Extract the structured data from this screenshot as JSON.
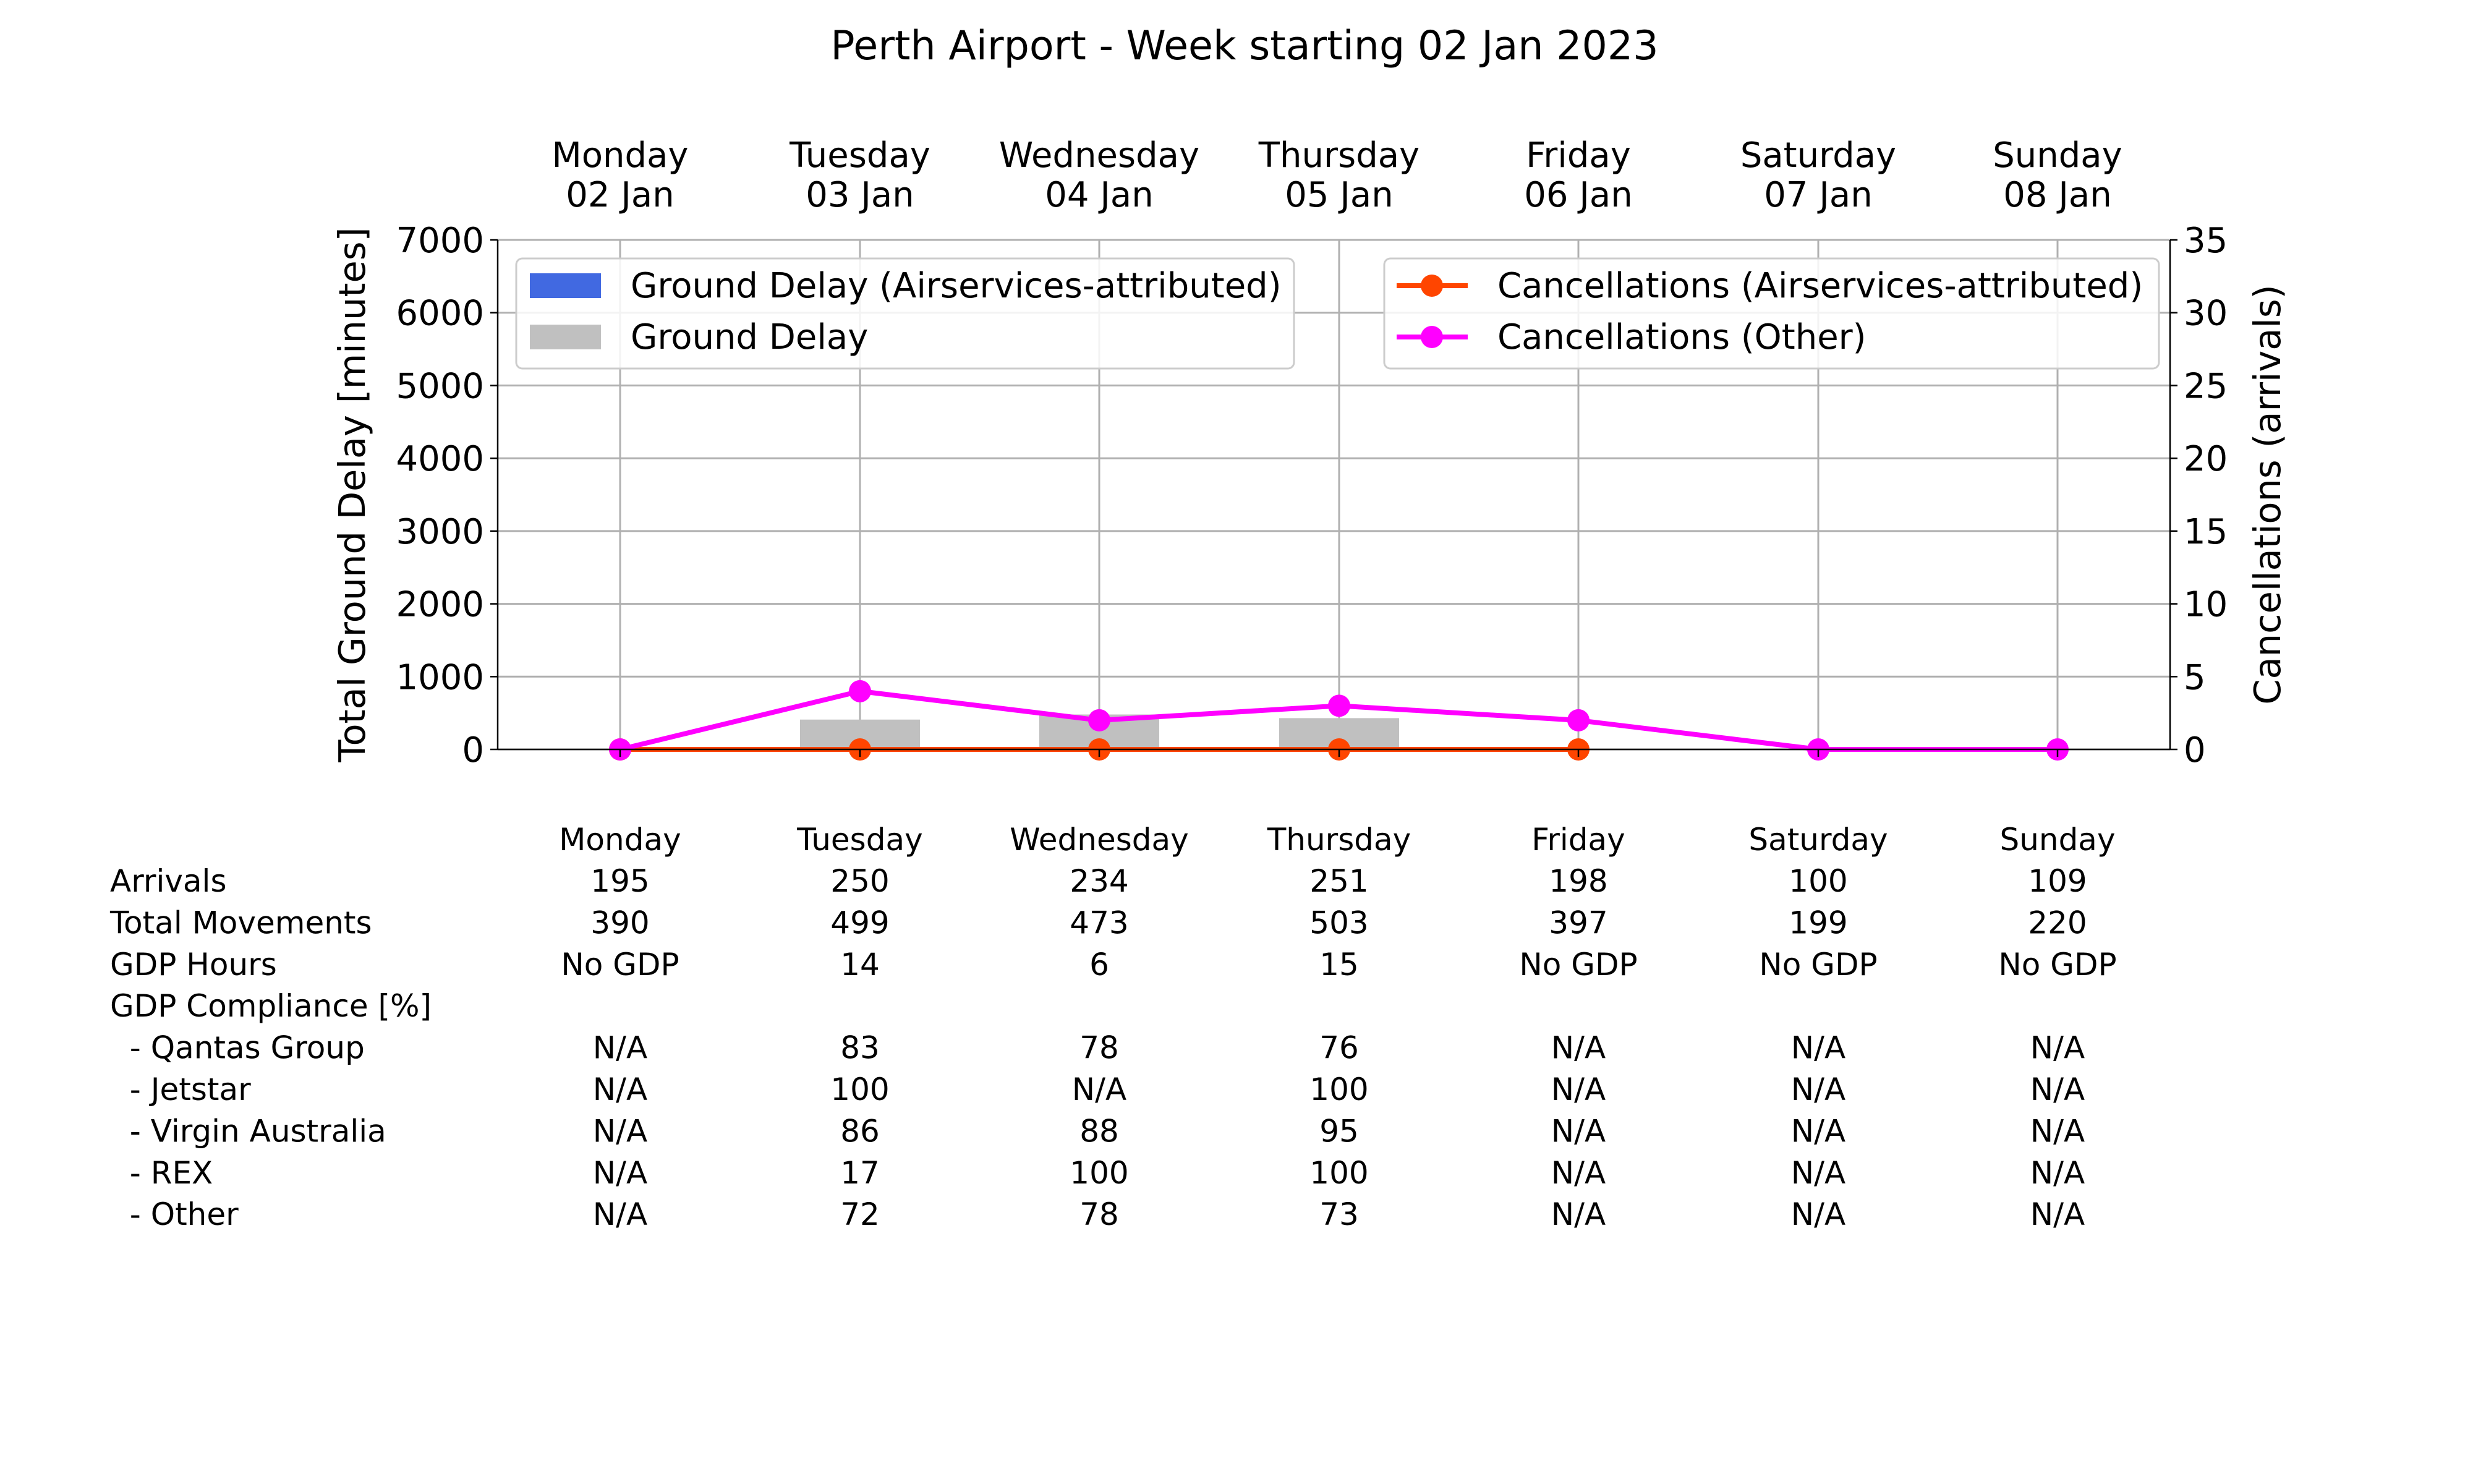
{
  "title": "Perth Airport - Week starting 02 Jan 2023",
  "chart_data": {
    "type": "bar",
    "title": "Perth Airport - Week starting 02 Jan 2023",
    "categories": [
      "Monday",
      "Tuesday",
      "Wednesday",
      "Thursday",
      "Friday",
      "Saturday",
      "Sunday"
    ],
    "category_dates": [
      "02 Jan",
      "03 Jan",
      "04 Jan",
      "05 Jan",
      "06 Jan",
      "07 Jan",
      "08 Jan"
    ],
    "ylabel_left": "Total Ground Delay [minutes]",
    "ylabel_right": "Cancellations (arrivals)",
    "ylim_left": [
      0,
      7000
    ],
    "ylim_right": [
      0,
      35
    ],
    "yticks_left": [
      "0",
      "1000",
      "2000",
      "3000",
      "4000",
      "5000",
      "6000",
      "7000"
    ],
    "yticks_right": [
      "0",
      "5",
      "10",
      "15",
      "20",
      "25",
      "30",
      "35"
    ],
    "grid": true,
    "legend_left_position": "upper-left",
    "legend_right_position": "upper-right",
    "bar_series": [
      {
        "name": "Ground Delay (Airservices-attributed)",
        "color": "#4169e1",
        "values": [
          0,
          0,
          0,
          0,
          0,
          0,
          0
        ]
      },
      {
        "name": "Ground Delay",
        "color": "#c0c0c0",
        "values": [
          0,
          410,
          480,
          430,
          0,
          0,
          0
        ]
      }
    ],
    "line_series": [
      {
        "name": "Cancellations (Airservices-attributed)",
        "color": "#ff4500",
        "values": [
          0,
          0,
          0,
          0,
          0,
          null,
          null
        ]
      },
      {
        "name": "Cancellations (Other)",
        "color": "#ff00ff",
        "values": [
          0,
          4,
          2,
          3,
          2,
          0,
          0
        ]
      }
    ]
  },
  "table": {
    "columns": [
      "Monday",
      "Tuesday",
      "Wednesday",
      "Thursday",
      "Friday",
      "Saturday",
      "Sunday"
    ],
    "rows": [
      {
        "label": "Arrivals",
        "values": [
          "195",
          "250",
          "234",
          "251",
          "198",
          "100",
          "109"
        ]
      },
      {
        "label": "Total Movements",
        "values": [
          "390",
          "499",
          "473",
          "503",
          "397",
          "199",
          "220"
        ]
      },
      {
        "label": "GDP Hours",
        "values": [
          "No GDP",
          "14",
          "6",
          "15",
          "No GDP",
          "No GDP",
          "No GDP"
        ]
      },
      {
        "label": "GDP Compliance [%]",
        "values": [
          "",
          "",
          "",
          "",
          "",
          "",
          ""
        ]
      },
      {
        "label": "  - Qantas Group",
        "values": [
          "N/A",
          "83",
          "78",
          "76",
          "N/A",
          "N/A",
          "N/A"
        ]
      },
      {
        "label": "  - Jetstar",
        "values": [
          "N/A",
          "100",
          "N/A",
          "100",
          "N/A",
          "N/A",
          "N/A"
        ]
      },
      {
        "label": "  - Virgin Australia",
        "values": [
          "N/A",
          "86",
          "88",
          "95",
          "N/A",
          "N/A",
          "N/A"
        ]
      },
      {
        "label": "  - REX",
        "values": [
          "N/A",
          "17",
          "100",
          "100",
          "N/A",
          "N/A",
          "N/A"
        ]
      },
      {
        "label": "  - Other",
        "values": [
          "N/A",
          "72",
          "78",
          "73",
          "N/A",
          "N/A",
          "N/A"
        ]
      }
    ]
  }
}
